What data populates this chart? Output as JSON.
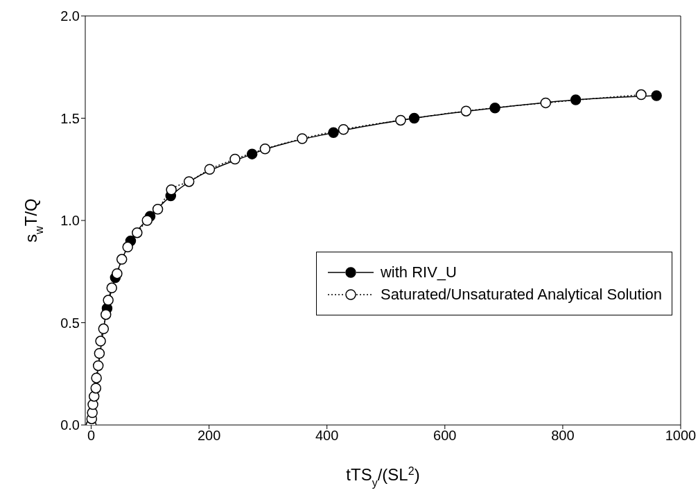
{
  "chart_data": {
    "type": "line",
    "xlabel": "tTS$_{y}$/(SL$^{2}$)",
    "ylabel": "s$_{w}$T/Q",
    "xlim": [
      -10,
      1000
    ],
    "xticks": [
      0,
      200,
      400,
      600,
      800,
      1000
    ],
    "ylim": [
      0,
      2
    ],
    "yticks": [
      {
        "value": 0,
        "label": "0.0"
      },
      {
        "value": 0.5,
        "label": "0.5"
      },
      {
        "value": 1,
        "label": "1.0"
      },
      {
        "value": 1.5,
        "label": "1.5"
      },
      {
        "value": 2,
        "label": "2.0"
      }
    ],
    "marker": "circle",
    "legend": "right",
    "grid": false,
    "series": [
      {
        "name": "with RIV_U",
        "color": "#000000",
        "line_style": "solid",
        "x": [
          0,
          27,
          41,
          67,
          100,
          135,
          273,
          411,
          548,
          685,
          822,
          959
        ],
        "values": [
          0,
          0.57,
          0.72,
          0.9,
          1.02,
          1.12,
          1.325,
          1.43,
          1.5,
          1.55,
          1.59,
          1.61
        ]
      },
      {
        "name": "Saturated/Unsaturated Analytical Solution",
        "color": "#000000",
        "line_style": "dotted",
        "x": [
          0,
          1,
          2,
          3,
          5,
          8,
          9,
          12,
          14,
          16,
          21,
          25,
          29,
          35,
          44,
          52,
          62,
          78,
          95,
          113,
          136,
          166,
          201,
          244,
          295,
          358,
          428,
          525,
          636,
          771,
          933
        ],
        "values": [
          0,
          0.03,
          0.06,
          0.1,
          0.14,
          0.18,
          0.23,
          0.29,
          0.35,
          0.41,
          0.47,
          0.54,
          0.61,
          0.67,
          0.74,
          0.81,
          0.87,
          0.94,
          1.0,
          1.055,
          1.15,
          1.19,
          1.25,
          1.3,
          1.35,
          1.4,
          1.445,
          1.49,
          1.535,
          1.575,
          1.615
        ]
      }
    ]
  }
}
